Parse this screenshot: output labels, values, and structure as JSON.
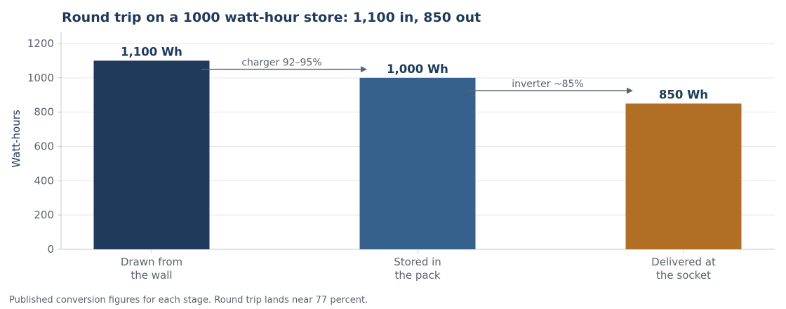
{
  "chart_data": {
    "type": "bar",
    "title": "Round trip on a 1000 watt-hour store: 1,100 in, 850 out",
    "ylabel": "Watt-hours",
    "xlabel": "",
    "ylim": [
      0,
      1260
    ],
    "yticks": [
      0,
      200,
      400,
      600,
      800,
      1000,
      1200
    ],
    "grid": true,
    "categories": [
      [
        "Drawn from",
        "the wall"
      ],
      [
        "Stored in",
        "the pack"
      ],
      [
        "Delivered at",
        "the socket"
      ]
    ],
    "values": [
      1100,
      1000,
      850
    ],
    "data_labels": [
      "1,100 Wh",
      "1,000 Wh",
      "850 Wh"
    ],
    "colors": [
      "#1f3a5a",
      "#36618c",
      "#b06f25"
    ],
    "annotations": [
      {
        "text": "charger 92–95%",
        "from": 0,
        "to": 1,
        "y_level": 1050
      },
      {
        "text": "inverter ~85%",
        "from": 1,
        "to": 2,
        "y_level": 925
      }
    ],
    "footnote": "Published conversion figures for each stage. Round trip lands near 77 percent."
  }
}
